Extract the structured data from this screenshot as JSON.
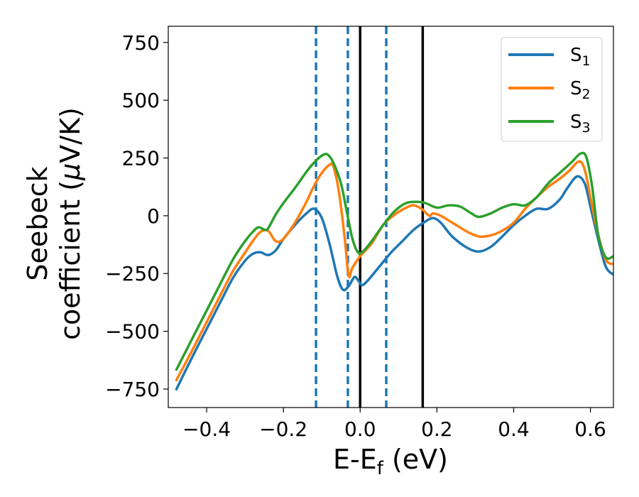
{
  "chart_data": {
    "type": "line",
    "xlabel": "E-E",
    "xlabel_sub": "f",
    "xlabel_unit": " (eV)",
    "ylabel_line1": "Seebeck",
    "ylabel_line2": "coefficient  (",
    "ylabel_mu": "μ",
    "ylabel_unit": "V/K)",
    "xlim": [
      -0.5,
      0.66
    ],
    "ylim": [
      -830,
      820
    ],
    "xticks": [
      -0.4,
      -0.2,
      0.0,
      0.2,
      0.4,
      0.6
    ],
    "xtick_labels": [
      "−0.4",
      "−0.2",
      "0.0",
      "0.2",
      "0.4",
      "0.6"
    ],
    "yticks": [
      -750,
      -500,
      -250,
      0,
      250,
      500,
      750
    ],
    "ytick_labels": [
      "−750",
      "−500",
      "−250",
      "0",
      "250",
      "500",
      "750"
    ],
    "legend_position": "top-right",
    "vlines_dashed": [
      -0.115,
      -0.032,
      0.068
    ],
    "vlines_solid": [
      0.0,
      0.163
    ],
    "series": [
      {
        "label_base": "S",
        "label_sub": "1",
        "color": "#1f77b4",
        "points": [
          [
            -0.48,
            -755
          ],
          [
            -0.44,
            -620
          ],
          [
            -0.4,
            -490
          ],
          [
            -0.36,
            -360
          ],
          [
            -0.33,
            -265
          ],
          [
            -0.3,
            -195
          ],
          [
            -0.28,
            -165
          ],
          [
            -0.26,
            -158
          ],
          [
            -0.24,
            -170
          ],
          [
            -0.22,
            -150
          ],
          [
            -0.2,
            -100
          ],
          [
            -0.17,
            -40
          ],
          [
            -0.14,
            10
          ],
          [
            -0.12,
            30
          ],
          [
            -0.1,
            -10
          ],
          [
            -0.08,
            -120
          ],
          [
            -0.06,
            -260
          ],
          [
            -0.045,
            -320
          ],
          [
            -0.03,
            -305
          ],
          [
            -0.015,
            -265
          ],
          [
            -0.005,
            -280
          ],
          [
            0.005,
            -300
          ],
          [
            0.02,
            -280
          ],
          [
            0.05,
            -220
          ],
          [
            0.08,
            -160
          ],
          [
            0.11,
            -110
          ],
          [
            0.14,
            -60
          ],
          [
            0.17,
            -25
          ],
          [
            0.19,
            -10
          ],
          [
            0.21,
            -30
          ],
          [
            0.24,
            -90
          ],
          [
            0.28,
            -140
          ],
          [
            0.31,
            -155
          ],
          [
            0.34,
            -135
          ],
          [
            0.37,
            -90
          ],
          [
            0.4,
            -40
          ],
          [
            0.43,
            0
          ],
          [
            0.46,
            30
          ],
          [
            0.49,
            30
          ],
          [
            0.52,
            70
          ],
          [
            0.54,
            120
          ],
          [
            0.565,
            170
          ],
          [
            0.585,
            140
          ],
          [
            0.6,
            40
          ],
          [
            0.62,
            -100
          ],
          [
            0.64,
            -220
          ],
          [
            0.66,
            -255
          ]
        ]
      },
      {
        "label_base": "S",
        "label_sub": "2",
        "color": "#ff7f0e",
        "points": [
          [
            -0.48,
            -715
          ],
          [
            -0.44,
            -590
          ],
          [
            -0.4,
            -460
          ],
          [
            -0.36,
            -330
          ],
          [
            -0.33,
            -235
          ],
          [
            -0.3,
            -160
          ],
          [
            -0.28,
            -110
          ],
          [
            -0.26,
            -70
          ],
          [
            -0.24,
            -65
          ],
          [
            -0.22,
            -110
          ],
          [
            -0.2,
            -100
          ],
          [
            -0.17,
            -30
          ],
          [
            -0.14,
            60
          ],
          [
            -0.12,
            130
          ],
          [
            -0.1,
            185
          ],
          [
            -0.08,
            220
          ],
          [
            -0.07,
            215
          ],
          [
            -0.055,
            100
          ],
          [
            -0.04,
            -100
          ],
          [
            -0.03,
            -260
          ],
          [
            -0.02,
            -225
          ],
          [
            0.0,
            -175
          ],
          [
            0.03,
            -120
          ],
          [
            0.06,
            -40
          ],
          [
            0.09,
            5
          ],
          [
            0.12,
            35
          ],
          [
            0.14,
            45
          ],
          [
            0.16,
            30
          ],
          [
            0.18,
            0
          ],
          [
            0.19,
            10
          ],
          [
            0.21,
            0
          ],
          [
            0.24,
            -30
          ],
          [
            0.28,
            -70
          ],
          [
            0.31,
            -90
          ],
          [
            0.34,
            -85
          ],
          [
            0.37,
            -65
          ],
          [
            0.4,
            -30
          ],
          [
            0.43,
            30
          ],
          [
            0.46,
            80
          ],
          [
            0.49,
            125
          ],
          [
            0.52,
            160
          ],
          [
            0.545,
            195
          ],
          [
            0.57,
            235
          ],
          [
            0.585,
            200
          ],
          [
            0.6,
            80
          ],
          [
            0.62,
            -80
          ],
          [
            0.64,
            -190
          ],
          [
            0.66,
            -210
          ]
        ]
      },
      {
        "label_base": "S",
        "label_sub": "3",
        "color": "#2ca02c",
        "points": [
          [
            -0.48,
            -670
          ],
          [
            -0.44,
            -540
          ],
          [
            -0.4,
            -410
          ],
          [
            -0.36,
            -280
          ],
          [
            -0.33,
            -185
          ],
          [
            -0.3,
            -110
          ],
          [
            -0.28,
            -70
          ],
          [
            -0.265,
            -50
          ],
          [
            -0.25,
            -60
          ],
          [
            -0.24,
            -55
          ],
          [
            -0.22,
            5
          ],
          [
            -0.2,
            55
          ],
          [
            -0.17,
            120
          ],
          [
            -0.14,
            190
          ],
          [
            -0.12,
            230
          ],
          [
            -0.1,
            260
          ],
          [
            -0.085,
            265
          ],
          [
            -0.07,
            230
          ],
          [
            -0.05,
            140
          ],
          [
            -0.035,
            20
          ],
          [
            -0.02,
            -100
          ],
          [
            -0.005,
            -160
          ],
          [
            0.01,
            -150
          ],
          [
            0.03,
            -110
          ],
          [
            0.06,
            -40
          ],
          [
            0.09,
            20
          ],
          [
            0.12,
            55
          ],
          [
            0.15,
            60
          ],
          [
            0.17,
            55
          ],
          [
            0.2,
            35
          ],
          [
            0.23,
            45
          ],
          [
            0.26,
            40
          ],
          [
            0.29,
            10
          ],
          [
            0.31,
            -5
          ],
          [
            0.34,
            10
          ],
          [
            0.37,
            35
          ],
          [
            0.4,
            50
          ],
          [
            0.43,
            45
          ],
          [
            0.46,
            80
          ],
          [
            0.49,
            140
          ],
          [
            0.52,
            185
          ],
          [
            0.55,
            230
          ],
          [
            0.575,
            270
          ],
          [
            0.59,
            250
          ],
          [
            0.605,
            120
          ],
          [
            0.62,
            -80
          ],
          [
            0.64,
            -180
          ],
          [
            0.66,
            -175
          ]
        ]
      }
    ]
  }
}
